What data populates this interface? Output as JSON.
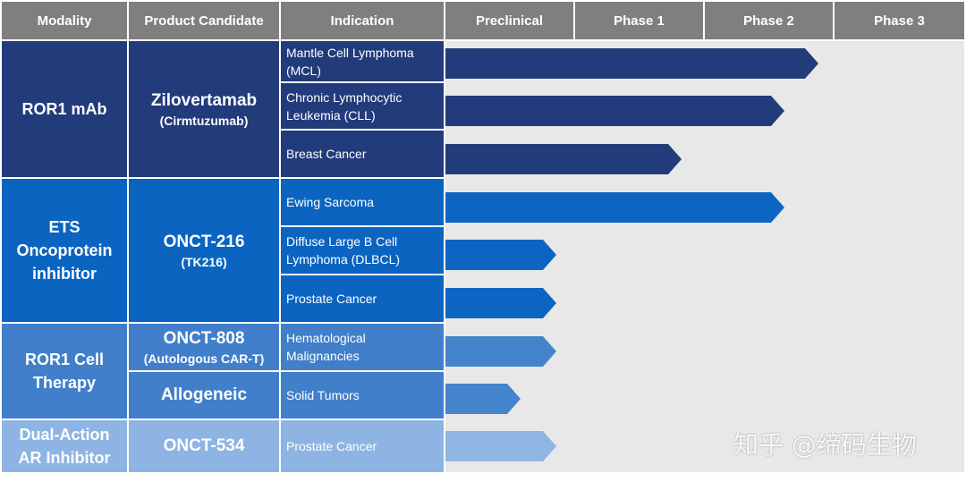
{
  "header": {
    "columns": [
      "Modality",
      "Product Candidate",
      "Indication",
      "Preclinical",
      "Phase 1",
      "Phase 2",
      "Phase 3"
    ]
  },
  "groups": [
    {
      "modality": "ROR1 mAb",
      "candidates": [
        {
          "name": "Zilovertamab",
          "note": "(Cirmtuzumab)"
        }
      ],
      "indications": [
        "Mantle Cell Lymphoma (MCL)",
        "Chronic Lymphocytic Leukemia (CLL)",
        "Breast Cancer"
      ]
    },
    {
      "modality": "ETS Oncoprotein inhibitor",
      "candidates": [
        {
          "name": "ONCT-216",
          "note": "(TK216)"
        }
      ],
      "indications": [
        "Ewing Sarcoma",
        "Diffuse Large B Cell Lymphoma (DLBCL)",
        "Prostate Cancer"
      ]
    },
    {
      "modality": "ROR1 Cell Therapy",
      "candidates": [
        {
          "name": "ONCT-808",
          "note": "(Autologous CAR-T)"
        },
        {
          "name": "Allogeneic"
        }
      ],
      "indications": [
        "Hematological Malignancies",
        "Solid Tumors"
      ]
    },
    {
      "modality": "Dual-Action AR Inhibitor",
      "candidates": [
        {
          "name": "ONCT-534"
        }
      ],
      "indications": [
        "Prostate Cancer"
      ]
    }
  ],
  "watermark": "知乎 @缔码生物"
}
